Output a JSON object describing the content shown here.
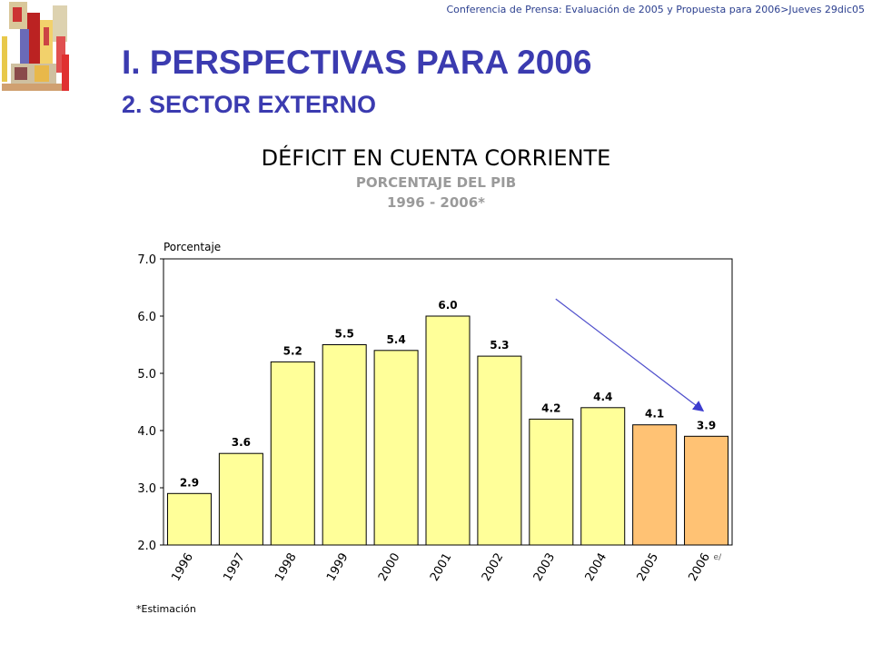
{
  "header": {
    "text": "Conferencia de Prensa: Evaluación de 2005 y Propuesta para 2006>Jueves 29dic05"
  },
  "slide": {
    "title": "I.  PERSPECTIVAS PARA 2006",
    "subtitle": "2.    SECTOR EXTERNO"
  },
  "chart_data": {
    "type": "bar",
    "title": "DÉFICIT EN CUENTA CORRIENTE",
    "subtitle_1": "PORCENTAJE DEL PIB",
    "subtitle_2": "1996 - 2006*",
    "ylabel": "Porcentaje",
    "ylim": [
      2.0,
      7.0
    ],
    "yticks": [
      "2.0",
      "3.0",
      "4.0",
      "5.0",
      "6.0",
      "7.0"
    ],
    "categories": [
      "1996",
      "1997",
      "1998",
      "1999",
      "2000",
      "2001",
      "2002",
      "2003",
      "2004",
      "2005",
      "2006"
    ],
    "values": [
      2.9,
      3.6,
      5.2,
      5.5,
      5.4,
      6.0,
      5.3,
      4.2,
      4.4,
      4.1,
      3.9
    ],
    "value_labels": [
      "2.9",
      "3.6",
      "5.2",
      "5.5",
      "5.4",
      "6.0",
      "5.3",
      "4.2",
      "4.4",
      "4.1",
      "3.9"
    ],
    "estimate_marker": "e/",
    "colors": {
      "actual": "#ffff99",
      "estimate": "#ffc274",
      "trend_arrow": "#4a50c8"
    },
    "footnote": "*Estimación",
    "grid": false
  }
}
